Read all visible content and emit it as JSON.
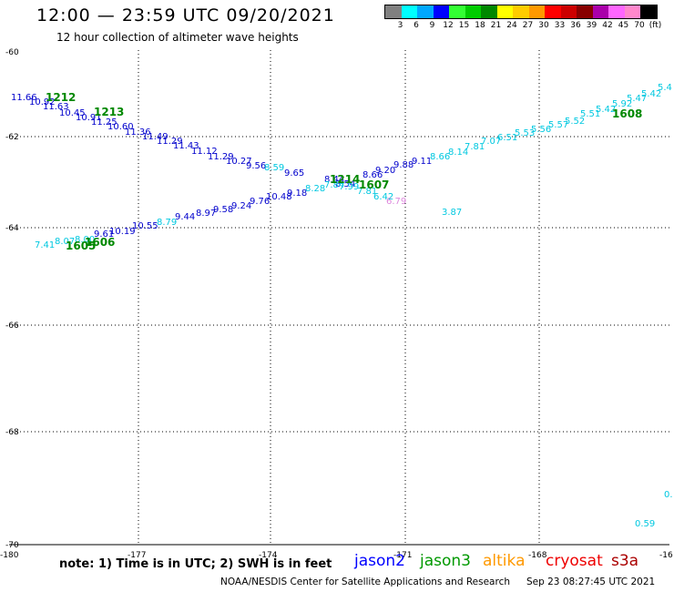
{
  "header": {
    "title": "12:00 — 23:59 UTC 09/20/2021",
    "subtitle": "12 hour collection of altimeter wave heights"
  },
  "legend": {
    "unit": "(ft)",
    "colors": [
      "#808080",
      "#00ffff",
      "#00a8ff",
      "#0000ff",
      "#33ff33",
      "#00cc00",
      "#008800",
      "#ffff00",
      "#ffcc00",
      "#ff9900",
      "#ff0000",
      "#cc0000",
      "#880000",
      "#aa00aa",
      "#ff66ff",
      "#ff88cc",
      "#000000"
    ],
    "labels": [
      "3",
      "6",
      "9",
      "12",
      "15",
      "18",
      "21",
      "24",
      "27",
      "30",
      "33",
      "36",
      "39",
      "42",
      "45",
      "70"
    ]
  },
  "axes": {
    "lat_labels": [
      "-60",
      "-62",
      "-64",
      "-66",
      "-68",
      "-70"
    ],
    "lon_labels": [
      "-180",
      "-177",
      "-174",
      "-171",
      "-168",
      "-16"
    ]
  },
  "tracks": [
    {
      "color": "#0000cc",
      "labels": [
        "11.66",
        "10.92",
        "11.63",
        "10.45",
        "10.91",
        "11.25",
        "10.60",
        "11.36",
        "11.49",
        "11.29",
        "11.43",
        "11.12",
        "11.29",
        "10.27",
        "9.56",
        "9.65",
        "8.44",
        "8.54",
        "8.66",
        "9.20",
        "9.88",
        "9.11"
      ]
    },
    {
      "color": "#0000cc",
      "labels": [
        "9.61",
        "10.19",
        "10.55",
        "9.44",
        "8.97",
        "9.58",
        "9.24",
        "9.76",
        "10.48",
        "9.18"
      ]
    },
    {
      "color": "#00c8e0",
      "labels": [
        "7.41",
        "8.07",
        "8.00",
        "8.79",
        "8.59",
        "8.28",
        "7.84",
        "7.99",
        "7.81",
        "6.42",
        "3.87",
        "8.66",
        "8.14",
        "7.81",
        "7.07",
        "6.51",
        "5.53",
        "5.56",
        "5.57",
        "5.52",
        "5.51",
        "5.42",
        "5.92",
        "5.47",
        "5.42",
        "5.4",
        "0.59",
        "0."
      ]
    },
    {
      "color": "#dd88dd",
      "labels": [
        "6.79"
      ]
    }
  ],
  "times": [
    {
      "label": "1212",
      "color": "#008800"
    },
    {
      "label": "1213",
      "color": "#008800"
    },
    {
      "label": "1214",
      "color": "#008800"
    },
    {
      "label": "1607",
      "color": "#008800"
    },
    {
      "label": "1605",
      "color": "#008800"
    },
    {
      "label": "1606",
      "color": "#008800"
    },
    {
      "label": "1608",
      "color": "#008800"
    }
  ],
  "footer": {
    "note": "note: 1) Time is in UTC; 2) SWH is in feet",
    "satellites": [
      {
        "name": "jason2",
        "color": "#0000ff"
      },
      {
        "name": "jason3",
        "color": "#009900"
      },
      {
        "name": "altika",
        "color": "#ff9900"
      },
      {
        "name": "cryosat",
        "color": "#ee0000"
      },
      {
        "name": "s3a",
        "color": "#aa0000"
      }
    ],
    "credit": "NOAA/NESDIS Center for Satellite Applications and Research",
    "timestamp": "Sep 23 08:27:45 UTC 2021"
  }
}
